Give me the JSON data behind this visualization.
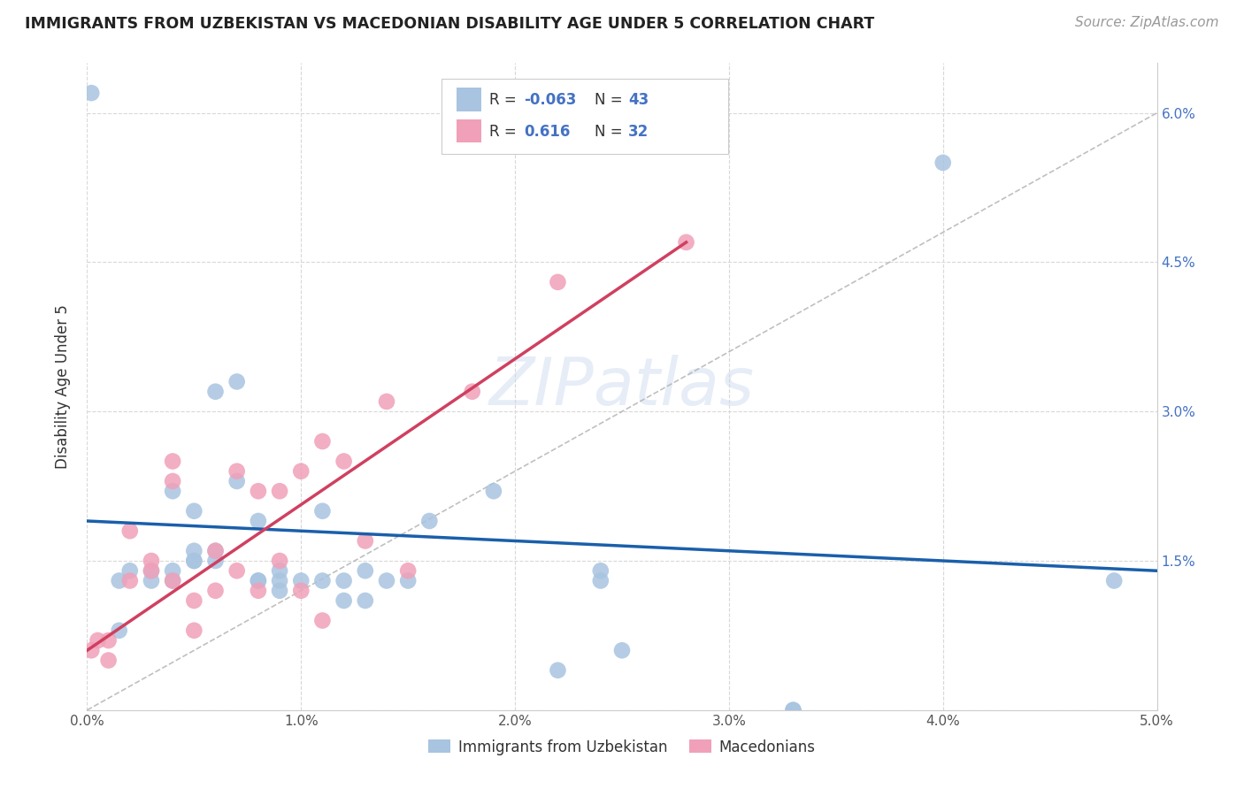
{
  "title": "IMMIGRANTS FROM UZBEKISTAN VS MACEDONIAN DISABILITY AGE UNDER 5 CORRELATION CHART",
  "source": "Source: ZipAtlas.com",
  "ylabel": "Disability Age Under 5",
  "xlim": [
    0.0,
    0.05
  ],
  "ylim": [
    0.0,
    0.065
  ],
  "xticks": [
    0.0,
    0.01,
    0.02,
    0.03,
    0.04,
    0.05
  ],
  "xtick_labels": [
    "0.0%",
    "1.0%",
    "2.0%",
    "3.0%",
    "4.0%",
    "5.0%"
  ],
  "yticks": [
    0.0,
    0.015,
    0.03,
    0.045,
    0.06
  ],
  "ytick_labels": [
    "",
    "1.5%",
    "3.0%",
    "4.5%",
    "6.0%"
  ],
  "blue_color": "#a8c4e0",
  "pink_color": "#f0a0b8",
  "blue_line_color": "#1a5faa",
  "pink_line_color": "#d04060",
  "grid_color": "#d8d8d8",
  "legend_R_blue": "-0.063",
  "legend_N_blue": "43",
  "legend_R_pink": "0.616",
  "legend_N_pink": "32",
  "legend_label_blue": "Immigrants from Uzbekistan",
  "legend_label_pink": "Macedonians",
  "blue_R": -0.063,
  "pink_R": 0.616,
  "blue_points_x": [
    0.0015,
    0.0015,
    0.002,
    0.003,
    0.003,
    0.004,
    0.004,
    0.004,
    0.005,
    0.005,
    0.005,
    0.005,
    0.006,
    0.006,
    0.006,
    0.007,
    0.007,
    0.008,
    0.008,
    0.008,
    0.009,
    0.009,
    0.009,
    0.01,
    0.011,
    0.011,
    0.012,
    0.012,
    0.013,
    0.013,
    0.014,
    0.015,
    0.016,
    0.019,
    0.024,
    0.024,
    0.025,
    0.033,
    0.033,
    0.04,
    0.048,
    0.0002,
    0.022
  ],
  "blue_points_y": [
    0.013,
    0.008,
    0.014,
    0.013,
    0.014,
    0.014,
    0.013,
    0.022,
    0.015,
    0.02,
    0.015,
    0.016,
    0.032,
    0.015,
    0.016,
    0.023,
    0.033,
    0.019,
    0.013,
    0.013,
    0.013,
    0.012,
    0.014,
    0.013,
    0.02,
    0.013,
    0.013,
    0.011,
    0.014,
    0.011,
    0.013,
    0.013,
    0.019,
    0.022,
    0.013,
    0.014,
    0.006,
    0.0,
    0.0,
    0.055,
    0.013,
    0.062,
    0.004
  ],
  "pink_points_x": [
    0.0002,
    0.0005,
    0.001,
    0.001,
    0.002,
    0.002,
    0.003,
    0.003,
    0.004,
    0.004,
    0.004,
    0.005,
    0.005,
    0.006,
    0.006,
    0.007,
    0.007,
    0.008,
    0.008,
    0.009,
    0.009,
    0.01,
    0.01,
    0.011,
    0.011,
    0.012,
    0.013,
    0.014,
    0.015,
    0.018,
    0.022,
    0.028
  ],
  "pink_points_y": [
    0.006,
    0.007,
    0.005,
    0.007,
    0.013,
    0.018,
    0.014,
    0.015,
    0.013,
    0.023,
    0.025,
    0.011,
    0.008,
    0.016,
    0.012,
    0.014,
    0.024,
    0.022,
    0.012,
    0.015,
    0.022,
    0.024,
    0.012,
    0.027,
    0.009,
    0.025,
    0.017,
    0.031,
    0.014,
    0.032,
    0.043,
    0.047
  ],
  "blue_line_x0": 0.0,
  "blue_line_x1": 0.05,
  "blue_line_y0": 0.019,
  "blue_line_y1": 0.014,
  "pink_line_x0": 0.0,
  "pink_line_x1": 0.028,
  "pink_line_y0": 0.006,
  "pink_line_y1": 0.047,
  "diag_line_x0": 0.0,
  "diag_line_x1": 0.05,
  "diag_line_y0": 0.0,
  "diag_line_y1": 0.06
}
